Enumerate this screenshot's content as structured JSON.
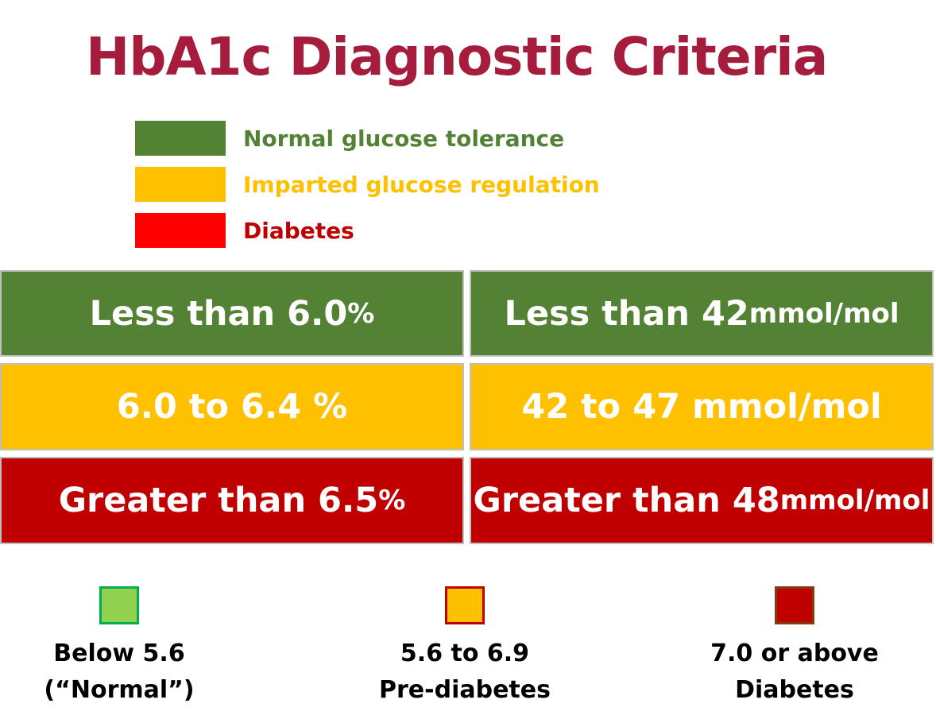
{
  "title": "HbA1c Diagnostic Criteria",
  "legend": [
    {
      "label": "Normal glucose tolerance",
      "color": "#548235",
      "text_color": "#548235"
    },
    {
      "label": "Imparted glucose regulation",
      "color": "#FFC000",
      "text_color": "#FFC000"
    },
    {
      "label": "Diabetes",
      "color": "#FF0000",
      "text_color": "#C00000"
    }
  ],
  "rows": [
    {
      "color": "#548235",
      "percent": {
        "main": "Less than 6.0 ",
        "unit": "%"
      },
      "mmol": {
        "main": "Less than 42 ",
        "unit": "mmol/mol"
      }
    },
    {
      "color": "#FFC000",
      "percent": {
        "main": "6.0 to 6.4 %",
        "unit": ""
      },
      "mmol": {
        "main": "42 to 47 mmol/mol",
        "unit": ""
      }
    },
    {
      "color": "#C00000",
      "percent": {
        "main": "Greater than 6.5 ",
        "unit": "%"
      },
      "mmol": {
        "main": "Greater than 48 ",
        "unit": "mmol/mol"
      }
    }
  ],
  "bottom": [
    {
      "line1": "Below 5.6",
      "line2": "(“Normal”)",
      "fill": "#92D050",
      "border": "#00B050"
    },
    {
      "line1": "5.6 to 6.9",
      "line2": "Pre-diabetes",
      "fill": "#FFC000",
      "border": "#C00000"
    },
    {
      "line1": "7.0 or above",
      "line2": "Diabetes",
      "fill": "#C00000",
      "border": "#843C0C"
    }
  ]
}
